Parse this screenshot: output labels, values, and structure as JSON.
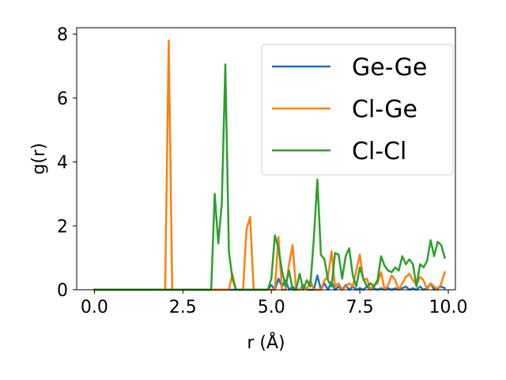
{
  "chart_data": {
    "type": "line",
    "xlabel": "r (Å)",
    "ylabel": "g(r)",
    "xlim": [
      -0.5,
      10.2
    ],
    "ylim": [
      0,
      8.2
    ],
    "xticks": [
      0.0,
      2.5,
      5.0,
      7.5,
      10.0
    ],
    "xtick_labels": [
      "0.0",
      "2.5",
      "5.0",
      "7.5",
      "10.0"
    ],
    "yticks": [
      0,
      2,
      4,
      6,
      8
    ],
    "ytick_labels": [
      "0",
      "2",
      "4",
      "6",
      "8"
    ],
    "grid": false,
    "legend_position": "top-right",
    "series": [
      {
        "name": "Ge-Ge",
        "color": "#1f77b4",
        "x": [
          0.0,
          4.9,
          5.0,
          5.1,
          5.2,
          5.3,
          5.4,
          5.5,
          5.6,
          5.7,
          5.8,
          5.9,
          6.0,
          6.1,
          6.2,
          6.3,
          6.4,
          6.5,
          6.6,
          6.7,
          6.8,
          6.9,
          7.0,
          7.1,
          7.2,
          7.3,
          7.4,
          7.5,
          7.6,
          7.7,
          7.8,
          7.9,
          8.0,
          8.1,
          8.2,
          8.3,
          8.4,
          8.5,
          8.6,
          8.7,
          8.8,
          8.9,
          9.0,
          9.1,
          9.2,
          9.3,
          9.4,
          9.5,
          9.6,
          9.7,
          9.8,
          9.9
        ],
        "y": [
          0.0,
          0.0,
          0.15,
          0.0,
          0.35,
          0.1,
          0.3,
          0.0,
          0.1,
          0.0,
          0.0,
          0.15,
          0.0,
          0.0,
          0.0,
          0.45,
          0.0,
          0.2,
          0.0,
          0.25,
          0.0,
          0.1,
          0.0,
          0.15,
          0.0,
          0.1,
          0.0,
          0.05,
          0.0,
          0.1,
          0.0,
          0.05,
          0.0,
          0.05,
          0.0,
          0.05,
          0.0,
          0.05,
          0.0,
          0.05,
          0.1,
          0.0,
          0.05,
          0.0,
          0.1,
          0.0,
          0.05,
          0.2,
          0.0,
          0.05,
          0.1,
          0.05
        ]
      },
      {
        "name": "Cl-Ge",
        "color": "#ff7f0e",
        "x": [
          0.0,
          2.0,
          2.1,
          2.2,
          2.3,
          3.8,
          3.9,
          4.0,
          4.1,
          4.2,
          4.3,
          4.4,
          4.5,
          4.6,
          5.1,
          5.2,
          5.3,
          5.4,
          5.5,
          5.6,
          5.7,
          5.8,
          5.9,
          6.0,
          6.1,
          6.2,
          6.3,
          6.4,
          6.5,
          6.6,
          6.7,
          6.8,
          6.9,
          7.0,
          7.1,
          7.2,
          7.3,
          7.4,
          7.5,
          7.6,
          7.7,
          7.8,
          7.9,
          8.0,
          8.1,
          8.2,
          8.3,
          8.4,
          8.5,
          8.6,
          8.7,
          8.8,
          8.9,
          9.0,
          9.1,
          9.2,
          9.3,
          9.4,
          9.5,
          9.6,
          9.7,
          9.8,
          9.9
        ],
        "y": [
          0.0,
          0.0,
          7.8,
          0.0,
          0.0,
          0.0,
          0.5,
          0.0,
          0.0,
          0.0,
          1.9,
          2.28,
          0.0,
          0.0,
          0.0,
          1.65,
          0.0,
          0.0,
          0.8,
          1.4,
          0.0,
          0.0,
          0.1,
          0.0,
          0.3,
          0.0,
          0.0,
          0.0,
          0.3,
          0.4,
          1.2,
          0.1,
          0.2,
          0.0,
          0.1,
          0.2,
          0.1,
          0.6,
          1.1,
          0.3,
          0.35,
          0.0,
          0.15,
          0.2,
          0.55,
          0.0,
          0.15,
          0.45,
          0.3,
          0.0,
          0.2,
          0.4,
          0.5,
          0.3,
          0.15,
          0.4,
          0.3,
          0.0,
          0.2,
          0.1,
          0.0,
          0.2,
          0.55
        ]
      },
      {
        "name": "Cl-Cl",
        "color": "#2ca02c",
        "x": [
          0.0,
          3.3,
          3.4,
          3.5,
          3.6,
          3.7,
          3.8,
          3.9,
          4.0,
          4.8,
          4.9,
          5.0,
          5.1,
          5.2,
          5.3,
          5.4,
          5.5,
          5.6,
          5.7,
          5.8,
          5.9,
          6.0,
          6.1,
          6.2,
          6.3,
          6.4,
          6.5,
          6.6,
          6.7,
          6.8,
          6.9,
          7.0,
          7.1,
          7.2,
          7.3,
          7.4,
          7.5,
          7.6,
          7.7,
          7.8,
          7.9,
          8.0,
          8.1,
          8.2,
          8.3,
          8.4,
          8.5,
          8.6,
          8.7,
          8.8,
          8.9,
          9.0,
          9.1,
          9.2,
          9.3,
          9.4,
          9.5,
          9.6,
          9.7,
          9.8,
          9.9
        ],
        "y": [
          0.0,
          0.0,
          3.0,
          1.45,
          2.7,
          7.05,
          1.2,
          0.35,
          0.0,
          0.0,
          0.0,
          0.35,
          1.7,
          1.3,
          0.6,
          0.1,
          0.6,
          0.0,
          0.0,
          0.5,
          0.0,
          0.3,
          0.1,
          1.6,
          3.45,
          1.1,
          0.95,
          0.3,
          0.1,
          1.15,
          1.1,
          0.35,
          1.05,
          1.3,
          0.45,
          0.1,
          0.7,
          0.35,
          0.1,
          0.2,
          0.1,
          0.3,
          1.05,
          0.75,
          0.6,
          0.55,
          0.7,
          0.6,
          1.05,
          0.8,
          0.95,
          0.8,
          0.1,
          0.8,
          0.7,
          0.9,
          1.55,
          1.05,
          1.5,
          1.4,
          1.0
        ]
      }
    ]
  }
}
